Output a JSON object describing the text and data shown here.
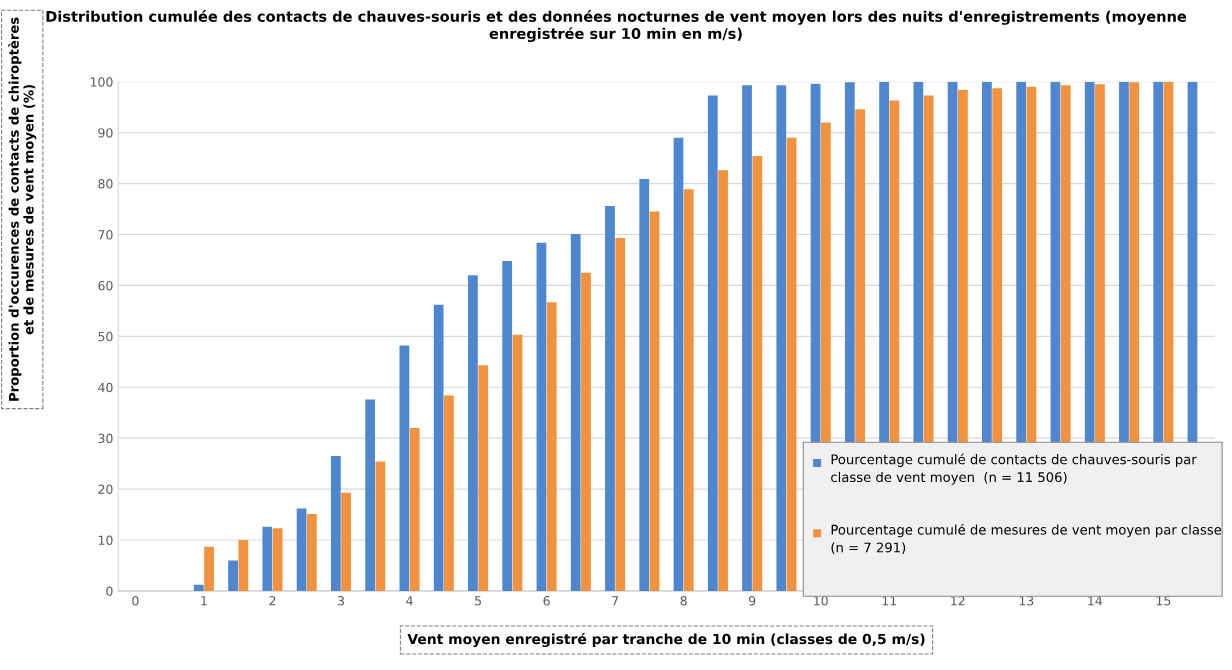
{
  "chart_data": {
    "type": "bar",
    "title": "Distribution cumulée des contacts de chauves-souris et des données nocturnes de vent moyen lors des nuits d'enregistrements (moyenne enregistrée sur 10 min en m/s)",
    "xlabel": "Vent moyen enregistré par tranche de 10 min (classes de 0,5 m/s)",
    "ylabel": "Proportion d'occurences de contacts de chiroptères et de mesures de vent moyen (%)",
    "categories": [
      "0",
      null,
      "1",
      null,
      "2",
      null,
      "3",
      null,
      "4",
      null,
      "5",
      null,
      "6",
      null,
      "7",
      null,
      "8",
      null,
      "9",
      null,
      "10",
      null,
      "11",
      null,
      "12",
      null,
      "13",
      null,
      "14",
      null,
      "15",
      null
    ],
    "series": [
      {
        "name": "Pourcentage cumulé de contacts de chauves-souris par classe de vent moyen  (n = 11 506)",
        "color": "#4f86d0",
        "values": [
          0,
          0,
          1.2,
          6,
          12.6,
          16.2,
          26.5,
          37.6,
          48.2,
          56.2,
          62,
          64.8,
          68.4,
          70.1,
          75.6,
          80.9,
          89.0,
          97.3,
          99.3,
          99.3,
          99.6,
          99.9,
          100,
          100,
          100,
          100,
          100,
          100,
          100,
          100,
          100,
          100
        ]
      },
      {
        "name": "Pourcentage cumulé de mesures de vent moyen par classe (n = 7 291)",
        "color": "#f0923e",
        "values": [
          0,
          0,
          8.7,
          10,
          12.3,
          15.1,
          19.3,
          25.4,
          32,
          38.4,
          44.3,
          50.3,
          56.7,
          62.5,
          69.3,
          74.5,
          78.9,
          82.6,
          85.4,
          89.0,
          92.0,
          94.6,
          96.3,
          97.3,
          98.4,
          98.7,
          99.0,
          99.3,
          99.5,
          99.9,
          100,
          null
        ]
      }
    ],
    "ylim": [
      0,
      100
    ],
    "yticks": [
      0,
      10,
      20,
      30,
      40,
      50,
      60,
      70,
      80,
      90,
      100
    ],
    "grid": "y",
    "legend": "bottom right"
  }
}
